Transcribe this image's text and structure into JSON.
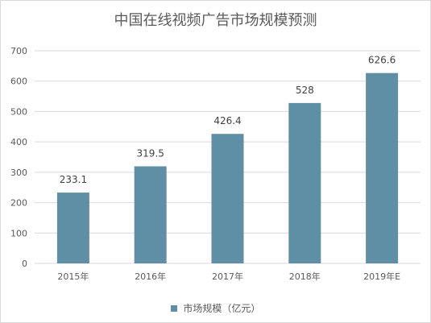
{
  "chart_data": {
    "type": "bar",
    "title": "中国在线视频广告市场规模预测",
    "categories": [
      "2015年",
      "2016年",
      "2017年",
      "2018年",
      "2019年E"
    ],
    "series": [
      {
        "name": "市场规模（亿元）",
        "values": [
          233.1,
          319.5,
          426.4,
          528,
          626.6
        ]
      }
    ],
    "data_labels": [
      "233.1",
      "319.5",
      "426.4",
      "528",
      "626.6"
    ],
    "ylim": [
      0,
      700
    ],
    "yticks": [
      0,
      100,
      200,
      300,
      400,
      500,
      600,
      700
    ],
    "grid": true,
    "legend": "bottom",
    "bar_color": "#5f8fa5",
    "grid_color": "#d9d9d9"
  }
}
